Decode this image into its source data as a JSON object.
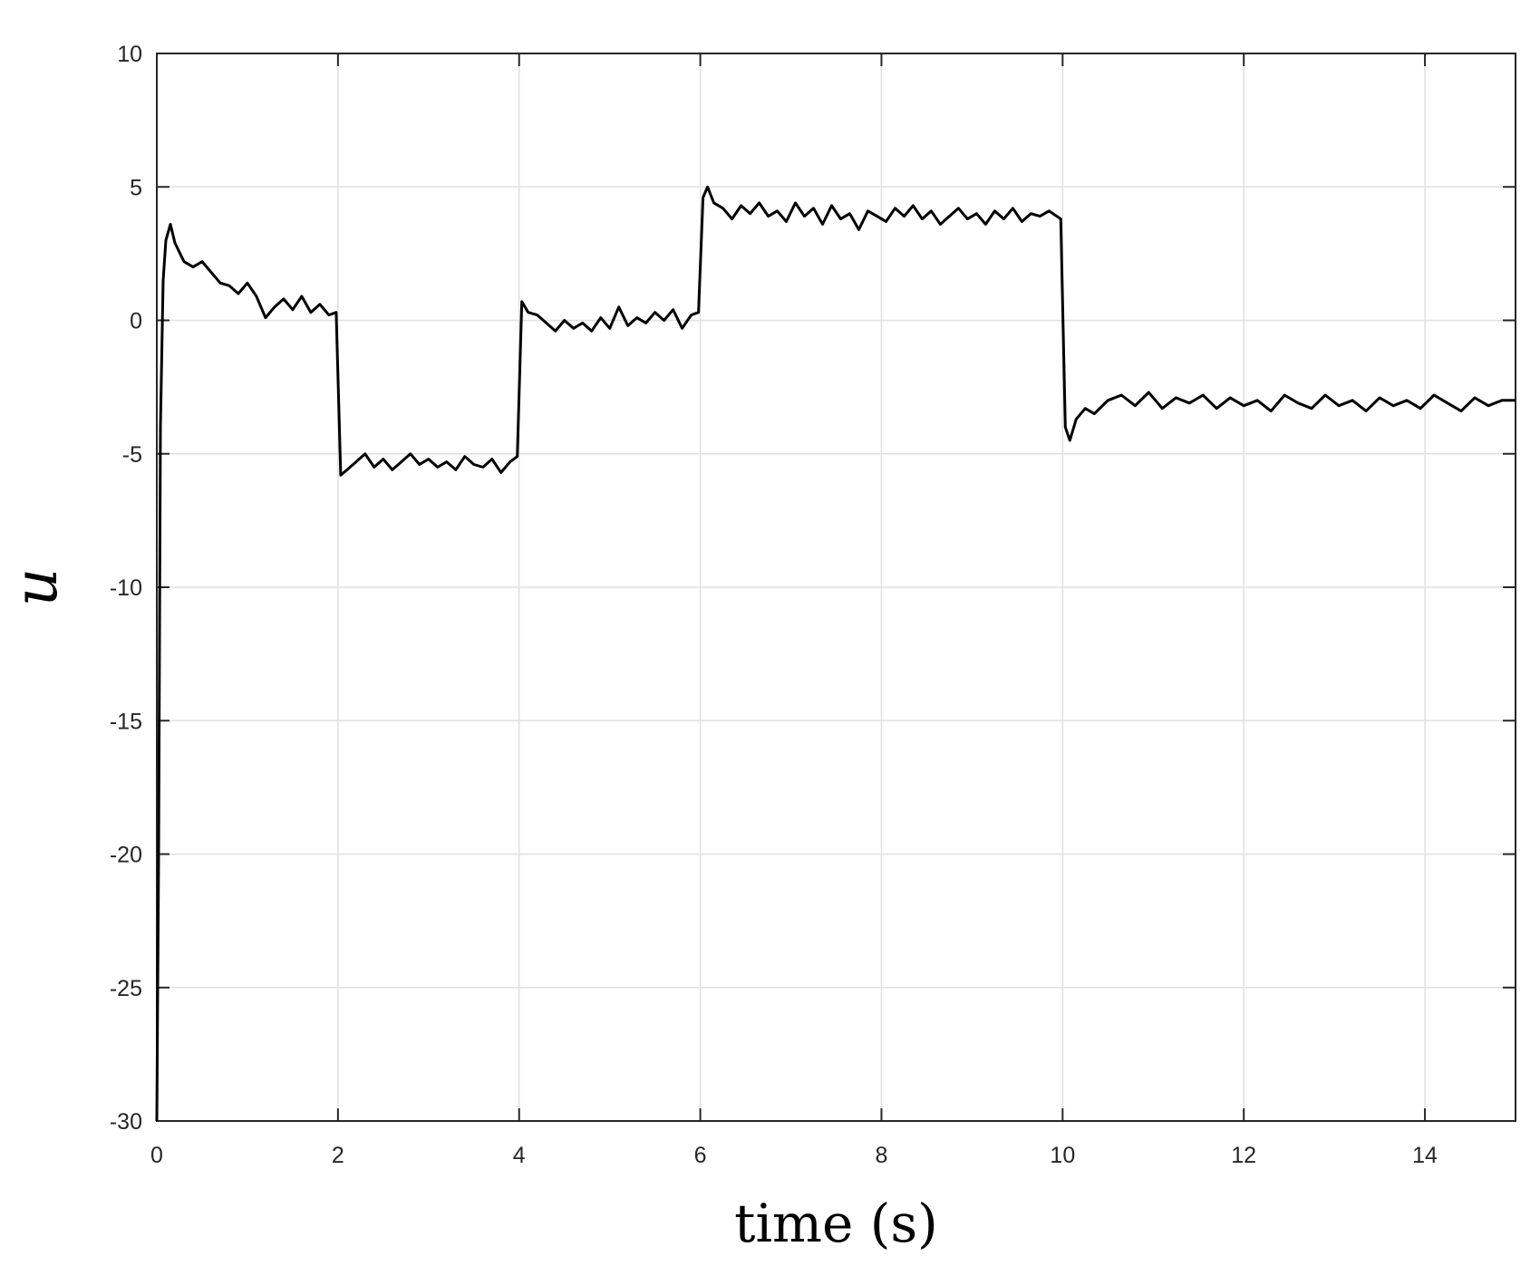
{
  "chart_data": {
    "type": "line",
    "title": "",
    "xlabel": "time (s)",
    "ylabel": "u",
    "xlim": [
      0,
      15
    ],
    "ylim": [
      -30,
      10
    ],
    "xticks": [
      0,
      2,
      4,
      6,
      8,
      10,
      12,
      14
    ],
    "xtick_labels": [
      "0",
      "2",
      "4",
      "6",
      "8",
      "10",
      "12",
      "14"
    ],
    "yticks": [
      10,
      5,
      0,
      -5,
      -10,
      -15,
      -20,
      -25,
      -30
    ],
    "ytick_labels": [
      "10",
      "5",
      "0",
      "-5",
      "-10",
      "-15",
      "-20",
      "-25",
      "-30"
    ],
    "grid": true,
    "line_color": "#000000",
    "grid_color": "#e0e0e0",
    "series": [
      {
        "x": [
          0,
          0.02,
          0.04,
          0.07,
          0.1,
          0.15,
          0.2,
          0.3,
          0.4,
          0.5,
          0.6,
          0.7,
          0.8,
          0.9,
          1.0,
          1.1,
          1.2,
          1.3,
          1.4,
          1.5,
          1.6,
          1.7,
          1.8,
          1.9,
          1.98,
          2.03,
          2.1,
          2.2,
          2.3,
          2.4,
          2.5,
          2.6,
          2.7,
          2.8,
          2.9,
          3.0,
          3.1,
          3.2,
          3.3,
          3.4,
          3.5,
          3.6,
          3.7,
          3.8,
          3.9,
          3.98,
          4.03,
          4.1,
          4.2,
          4.3,
          4.4,
          4.5,
          4.6,
          4.7,
          4.8,
          4.9,
          5.0,
          5.1,
          5.2,
          5.3,
          5.4,
          5.5,
          5.6,
          5.7,
          5.8,
          5.9,
          5.98,
          6.03,
          6.08,
          6.15,
          6.25,
          6.35,
          6.45,
          6.55,
          6.65,
          6.75,
          6.85,
          6.95,
          7.05,
          7.15,
          7.25,
          7.35,
          7.45,
          7.55,
          7.65,
          7.75,
          7.85,
          7.95,
          8.05,
          8.15,
          8.25,
          8.35,
          8.45,
          8.55,
          8.65,
          8.75,
          8.85,
          8.95,
          9.05,
          9.15,
          9.25,
          9.35,
          9.45,
          9.55,
          9.65,
          9.75,
          9.85,
          9.98,
          10.03,
          10.08,
          10.15,
          10.25,
          10.35,
          10.5,
          10.65,
          10.8,
          10.95,
          11.1,
          11.25,
          11.4,
          11.55,
          11.7,
          11.85,
          12.0,
          12.15,
          12.3,
          12.45,
          12.6,
          12.75,
          12.9,
          13.05,
          13.2,
          13.35,
          13.5,
          13.65,
          13.8,
          13.95,
          14.1,
          14.25,
          14.4,
          14.55,
          14.7,
          14.85,
          15.0
        ],
        "y": [
          -30,
          -20,
          -4,
          1.5,
          3.0,
          3.6,
          2.9,
          2.2,
          2.0,
          2.2,
          1.8,
          1.4,
          1.3,
          1.0,
          1.4,
          0.9,
          0.1,
          0.5,
          0.8,
          0.4,
          0.9,
          0.3,
          0.6,
          0.2,
          0.3,
          -5.8,
          -5.6,
          -5.3,
          -5.0,
          -5.5,
          -5.2,
          -5.6,
          -5.3,
          -5.0,
          -5.4,
          -5.2,
          -5.5,
          -5.3,
          -5.6,
          -5.1,
          -5.4,
          -5.5,
          -5.2,
          -5.7,
          -5.3,
          -5.1,
          0.7,
          0.3,
          0.2,
          -0.1,
          -0.4,
          0.0,
          -0.3,
          -0.1,
          -0.4,
          0.1,
          -0.3,
          0.5,
          -0.2,
          0.1,
          -0.1,
          0.3,
          0.0,
          0.4,
          -0.3,
          0.2,
          0.3,
          4.6,
          5.0,
          4.4,
          4.2,
          3.8,
          4.3,
          4.0,
          4.4,
          3.9,
          4.1,
          3.7,
          4.4,
          3.9,
          4.2,
          3.6,
          4.3,
          3.8,
          4.0,
          3.4,
          4.1,
          3.9,
          3.7,
          4.2,
          3.9,
          4.3,
          3.8,
          4.1,
          3.6,
          3.9,
          4.2,
          3.8,
          4.0,
          3.6,
          4.1,
          3.8,
          4.2,
          3.7,
          4.0,
          3.9,
          4.1,
          3.8,
          -4.0,
          -4.5,
          -3.7,
          -3.3,
          -3.5,
          -3.0,
          -2.8,
          -3.2,
          -2.7,
          -3.3,
          -2.9,
          -3.1,
          -2.8,
          -3.3,
          -2.9,
          -3.2,
          -3.0,
          -3.4,
          -2.8,
          -3.1,
          -3.3,
          -2.8,
          -3.2,
          -3.0,
          -3.4,
          -2.9,
          -3.2,
          -3.0,
          -3.3,
          -2.8,
          -3.1,
          -3.4,
          -2.9,
          -3.2,
          -3.0,
          -3.0
        ]
      }
    ]
  }
}
